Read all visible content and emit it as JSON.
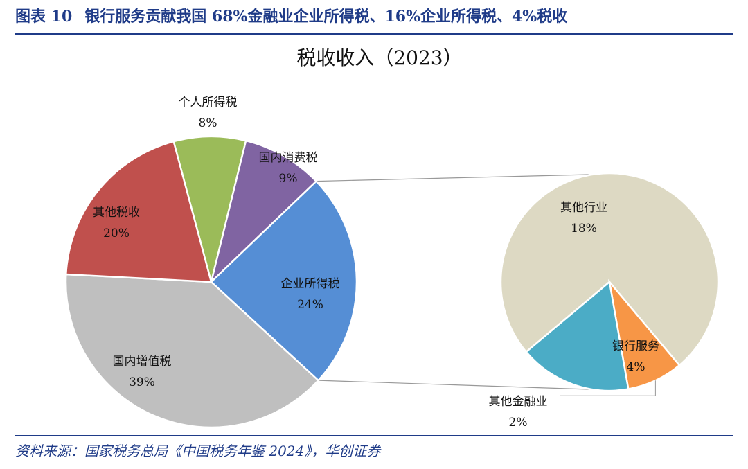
{
  "header": {
    "figure_no": "图表 10",
    "title": "银行服务贡献我国 68%金融业企业所得税、16%企业所得税、4%税收"
  },
  "chart_data": [
    {
      "type": "pie",
      "title": "税收收入（2023）",
      "series": [
        {
          "name": "",
          "categories": [
            "个人所得税",
            "国内消费税",
            "企业所得税",
            "国内增值税",
            "其他税收"
          ],
          "values": [
            8,
            9,
            24,
            39,
            20
          ],
          "labels": [
            "8%",
            "9%",
            "24%",
            "39%",
            "20%"
          ],
          "colors": [
            "#9bbb59",
            "#8064a2",
            "#558ed5",
            "#bfbfbf",
            "#c0504d"
          ]
        }
      ]
    },
    {
      "type": "pie",
      "title": "",
      "series": [
        {
          "name": "",
          "categories": [
            "其他行业",
            "银行服务",
            "其他金融业"
          ],
          "values": [
            18,
            4,
            2
          ],
          "labels": [
            "18%",
            "4%",
            "2%"
          ],
          "colors": [
            "#ddd9c3",
            "#4bacc6",
            "#f79646"
          ]
        }
      ]
    }
  ],
  "footer": {
    "source": "资料来源：国家税务总局《中国税务年鉴 2024》，华创证券"
  }
}
